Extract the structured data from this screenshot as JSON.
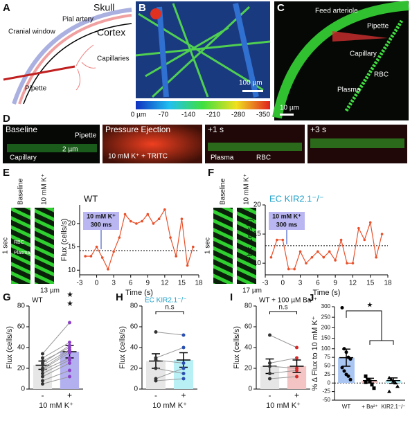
{
  "panels": {
    "A": {
      "label": "A",
      "skull": "Skull",
      "pial": "Pial artery",
      "cortex": "Cortex",
      "window": "Cranial window",
      "capillaries": "Capillaries",
      "pipette": "Pipette"
    },
    "B": {
      "label": "B",
      "scale": "100 µm",
      "colorbar": [
        "0 µm",
        "-70",
        "-140",
        "-210",
        "-280",
        "-350"
      ]
    },
    "C": {
      "label": "C",
      "feed": "Feed arteriole",
      "pipette": "Pipette",
      "capillary": "Capillary",
      "rbc": "RBC",
      "plasma": "Plasma",
      "scale": "10 µm"
    },
    "D": {
      "label": "D",
      "baseline": "Baseline",
      "pipette": "Pipette",
      "capillary": "Capillary",
      "scale": "2 µm",
      "ejection": "Pressure Ejection",
      "solution": "10 mM K⁺ + TRITC",
      "t1": "+1 s",
      "plasma": "Plasma",
      "rbc": "RBC",
      "t3": "+3 s"
    },
    "E": {
      "label": "E",
      "baseline": "Baseline",
      "k": "10 mM K⁺",
      "sec": "1 sec",
      "rbc": "RBC",
      "plasma": "Plasma",
      "scale": "13 µm"
    },
    "F": {
      "label": "F",
      "baseline": "Baseline",
      "k": "10 mM K⁺",
      "sec": "1 sec",
      "scale": "17 µm"
    }
  },
  "chart_data": [
    {
      "type": "line",
      "title": "WT",
      "annotation": [
        "10 mM K⁺",
        "300 ms"
      ],
      "xlabel": "Time (s)",
      "ylabel": "Flux (cells/s)",
      "x": [
        -2,
        -1,
        0,
        1,
        2,
        3,
        4,
        5,
        6,
        7,
        8,
        9,
        10,
        11,
        12,
        13,
        14,
        15,
        16,
        17
      ],
      "values": [
        13,
        13,
        15,
        12.7,
        10.2,
        14,
        17,
        22,
        20.5,
        20,
        20.5,
        22,
        20,
        21,
        23,
        17,
        13,
        21,
        11,
        15
      ],
      "baseline": 14.2,
      "color": "#e8502a",
      "xlim": [
        -3,
        18
      ],
      "xticks": [
        -3,
        0,
        3,
        6,
        9,
        12,
        15,
        18
      ],
      "ylim": [
        9,
        24
      ],
      "yticks": [
        10,
        15,
        20
      ]
    },
    {
      "type": "line",
      "title": "EC KIR2.1⁻/⁻",
      "annotation": [
        "10 mM K⁺",
        "300 ms"
      ],
      "xlabel": "Time (s)",
      "ylabel": "Flux (cells/s)",
      "x": [
        -2,
        -1,
        0,
        1,
        2,
        3,
        4,
        5,
        6,
        7,
        8,
        9,
        10,
        11,
        12,
        13,
        14,
        15,
        16,
        17
      ],
      "values": [
        11,
        14,
        14,
        9,
        9,
        12,
        10,
        11,
        12,
        11,
        12,
        10.5,
        14,
        10,
        10,
        16,
        14,
        17,
        11,
        15
      ],
      "baseline": 13,
      "color": "#e8502a",
      "xlim": [
        -3,
        18
      ],
      "xticks": [
        -3,
        0,
        3,
        6,
        9,
        12,
        15,
        18
      ],
      "ylim": [
        8,
        20
      ],
      "yticks": [
        10,
        15,
        20
      ]
    },
    {
      "type": "bar",
      "label": "G",
      "title": "WT",
      "significance": "★★",
      "ylabel": "Flux (cells/s)",
      "xlabel": "10 mM K⁺",
      "categories": [
        "-",
        "+"
      ],
      "values": [
        23,
        36
      ],
      "errors": [
        4,
        6
      ],
      "colors": [
        "#e6e6e6",
        "#b3b0f0"
      ],
      "point_color": "#8b3fc7",
      "points": [
        [
          34,
          64
        ],
        [
          30,
          45
        ],
        [
          27,
          40
        ],
        [
          25,
          42
        ],
        [
          23,
          38
        ],
        [
          20,
          37
        ],
        [
          19,
          35
        ],
        [
          18,
          30
        ],
        [
          15,
          28
        ],
        [
          12,
          25
        ],
        [
          8,
          18
        ],
        [
          5,
          12
        ]
      ],
      "ylim": [
        0,
        80
      ],
      "yticks": [
        0,
        20,
        40,
        60,
        80
      ]
    },
    {
      "type": "bar",
      "label": "H",
      "title": "EC KIR2.1⁻/⁻",
      "significance": "n.s",
      "ylabel": "Flux (cells/s)",
      "xlabel": "10 mM K⁺",
      "categories": [
        "-",
        "+"
      ],
      "values": [
        27,
        28
      ],
      "errors": [
        7,
        7
      ],
      "colors": [
        "#e6e6e6",
        "#b8f0f5"
      ],
      "point_color": "#2a4fb0",
      "points": [
        [
          55,
          52
        ],
        [
          30,
          40
        ],
        [
          28,
          25
        ],
        [
          20,
          15
        ],
        [
          10,
          20
        ],
        [
          8,
          10
        ]
      ],
      "ylim": [
        0,
        80
      ],
      "yticks": [
        0,
        20,
        40,
        60,
        80
      ]
    },
    {
      "type": "bar",
      "label": "I",
      "title": "WT + 100 µM Ba²⁺",
      "significance": "n.s",
      "ylabel": "Flux (cells/s)",
      "xlabel": "10 mM K⁺",
      "categories": [
        "-",
        "+"
      ],
      "values": [
        22,
        22
      ],
      "errors": [
        7,
        6
      ],
      "colors": [
        "#e6e6e6",
        "#f4c4c4"
      ],
      "point_color": "#d42a2a",
      "points": [
        [
          52,
          40
        ],
        [
          25,
          30
        ],
        [
          22,
          20
        ],
        [
          15,
          18
        ],
        [
          10,
          12
        ]
      ],
      "ylim": [
        0,
        80
      ],
      "yticks": [
        0,
        20,
        40,
        60,
        80
      ]
    },
    {
      "type": "bar",
      "label": "J",
      "significance": "★",
      "ylabel": "% Δ Flux to 10 mM K⁺",
      "categories": [
        "WT",
        "+ Ba²⁺",
        "KIR2.1⁻/⁻"
      ],
      "values": [
        74,
        7,
        7
      ],
      "errors": [
        25,
        7,
        8
      ],
      "colors": [
        "#a9c5f2",
        "#f4c4c4",
        "#b8f0f5"
      ],
      "point_color": "#000000",
      "points": [
        [
          295,
          100,
          90,
          75,
          70,
          45,
          35,
          25,
          20,
          10
        ],
        [
          20,
          10,
          5,
          -5,
          -15,
          2
        ],
        [
          15,
          10,
          5,
          0,
          -10,
          -25
        ]
      ],
      "ylim": [
        -50,
        300
      ],
      "ybreak": 100,
      "yticks": [
        -50,
        -25,
        0,
        25,
        50,
        75,
        100,
        150,
        200,
        250,
        300
      ]
    }
  ]
}
